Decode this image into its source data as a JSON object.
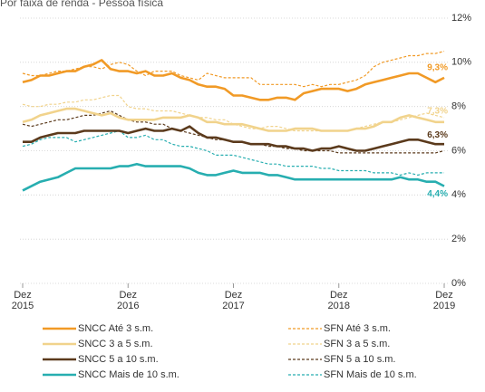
{
  "chart_data": {
    "type": "line",
    "title": "Por faixa de renda - Pessoa física",
    "categories": [
      "Dez 2015",
      null,
      null,
      null,
      null,
      null,
      null,
      null,
      null,
      null,
      null,
      null,
      "Dez 2016",
      null,
      null,
      null,
      null,
      null,
      null,
      null,
      null,
      null,
      null,
      null,
      "Dez 2017",
      null,
      null,
      null,
      null,
      null,
      null,
      null,
      null,
      null,
      null,
      null,
      "Dez 2018",
      null,
      null,
      null,
      null,
      null,
      null,
      null,
      null,
      null,
      null,
      null,
      "Dez 2019"
    ],
    "ylim": [
      0,
      12
    ],
    "yticks": [
      {
        "value": 0,
        "label": "0%"
      },
      {
        "value": 2,
        "label": "2%"
      },
      {
        "value": 4,
        "label": "4%"
      },
      {
        "value": 6,
        "label": "6%"
      },
      {
        "value": 8,
        "label": "8%"
      },
      {
        "value": 10,
        "label": "10%"
      },
      {
        "value": 12,
        "label": "12%"
      }
    ],
    "grid": true,
    "series": [
      {
        "name": "SNCC Até 3 s.m.",
        "color": "#f19a26",
        "dashed": false,
        "values": [
          9.1,
          9.2,
          9.4,
          9.4,
          9.5,
          9.6,
          9.6,
          9.8,
          9.9,
          10.1,
          9.7,
          9.6,
          9.6,
          9.5,
          9.6,
          9.4,
          9.4,
          9.5,
          9.3,
          9.2,
          9.0,
          8.9,
          8.9,
          8.8,
          8.5,
          8.5,
          8.4,
          8.3,
          8.3,
          8.4,
          8.4,
          8.3,
          8.6,
          8.7,
          8.8,
          8.8,
          8.8,
          8.7,
          8.8,
          9.0,
          9.1,
          9.2,
          9.3,
          9.4,
          9.5,
          9.5,
          9.3,
          9.1,
          9.3
        ]
      },
      {
        "name": "SFN Até 3 s.m.",
        "color": "#f19a26",
        "dashed": true,
        "values": [
          9.5,
          9.4,
          9.4,
          9.5,
          9.6,
          9.6,
          9.7,
          9.8,
          9.8,
          9.7,
          9.9,
          10.0,
          9.9,
          9.6,
          9.4,
          9.6,
          9.6,
          9.6,
          9.4,
          9.3,
          9.2,
          9.5,
          9.4,
          9.3,
          9.3,
          9.3,
          9.3,
          9.0,
          9.0,
          9.0,
          9.0,
          9.0,
          8.9,
          9.0,
          8.9,
          9.0,
          9.0,
          9.1,
          9.2,
          9.4,
          9.8,
          10.0,
          10.1,
          10.2,
          10.3,
          10.3,
          10.4,
          10.4,
          10.5
        ]
      },
      {
        "name": "SNCC 3 a 5 s.m.",
        "color": "#f1d38c",
        "dashed": false,
        "values": [
          7.3,
          7.4,
          7.6,
          7.7,
          7.8,
          7.9,
          7.9,
          7.8,
          7.7,
          7.6,
          7.7,
          7.5,
          7.4,
          7.4,
          7.4,
          7.4,
          7.5,
          7.5,
          7.5,
          7.6,
          7.5,
          7.3,
          7.3,
          7.2,
          7.2,
          7.2,
          7.1,
          7.0,
          6.9,
          6.9,
          6.9,
          7.0,
          7.0,
          7.0,
          6.9,
          6.9,
          6.9,
          6.9,
          7.0,
          7.0,
          7.1,
          7.3,
          7.3,
          7.5,
          7.6,
          7.5,
          7.4,
          7.3,
          7.3
        ]
      },
      {
        "name": "SFN 3 a 5 s.m.",
        "color": "#f1d38c",
        "dashed": true,
        "values": [
          8.1,
          8.0,
          8.0,
          8.1,
          8.1,
          8.2,
          8.2,
          8.3,
          8.3,
          8.4,
          8.5,
          8.5,
          8.0,
          7.9,
          7.9,
          7.8,
          7.8,
          7.8,
          7.7,
          7.6,
          7.5,
          7.5,
          7.4,
          7.4,
          7.2,
          7.1,
          7.0,
          7.0,
          7.1,
          7.1,
          7.0,
          6.9,
          6.9,
          6.9,
          6.9,
          6.9,
          6.9,
          6.9,
          7.0,
          7.1,
          7.2,
          7.3,
          7.3,
          7.4,
          7.5,
          7.6,
          7.7,
          7.6,
          7.5
        ]
      },
      {
        "name": "SNCC 5 a 10 s.m.",
        "color": "#5b3a1c",
        "dashed": false,
        "values": [
          6.4,
          6.4,
          6.6,
          6.7,
          6.8,
          6.8,
          6.8,
          6.9,
          6.9,
          6.9,
          6.9,
          6.9,
          6.8,
          6.9,
          7.0,
          6.9,
          6.9,
          7.0,
          6.9,
          7.1,
          6.8,
          6.6,
          6.6,
          6.5,
          6.4,
          6.4,
          6.3,
          6.3,
          6.3,
          6.2,
          6.2,
          6.1,
          6.1,
          6.0,
          6.1,
          6.1,
          6.2,
          6.1,
          6.0,
          6.0,
          6.1,
          6.2,
          6.3,
          6.4,
          6.5,
          6.5,
          6.4,
          6.3,
          6.3
        ]
      },
      {
        "name": "SFN 5 a 10 s.m.",
        "color": "#5b3a1c",
        "dashed": true,
        "values": [
          7.2,
          7.1,
          7.2,
          7.3,
          7.4,
          7.4,
          7.5,
          7.6,
          7.6,
          7.7,
          7.8,
          7.6,
          7.4,
          7.3,
          7.3,
          7.2,
          7.2,
          7.0,
          6.9,
          6.8,
          6.7,
          6.6,
          6.5,
          6.5,
          6.4,
          6.4,
          6.3,
          6.3,
          6.2,
          6.2,
          6.1,
          6.1,
          6.0,
          6.0,
          6.0,
          6.0,
          5.9,
          5.9,
          5.9,
          5.9,
          5.9,
          5.9,
          5.9,
          5.9,
          5.9,
          5.9,
          5.9,
          5.9,
          6.0
        ]
      },
      {
        "name": "SNCC Mais de 10 s.m.",
        "color": "#27aeb0",
        "dashed": false,
        "values": [
          4.2,
          4.4,
          4.6,
          4.7,
          4.8,
          5.0,
          5.2,
          5.2,
          5.2,
          5.2,
          5.2,
          5.3,
          5.3,
          5.4,
          5.3,
          5.3,
          5.3,
          5.3,
          5.3,
          5.2,
          5.0,
          4.9,
          4.9,
          5.0,
          5.1,
          5.0,
          5.0,
          5.0,
          4.9,
          4.9,
          4.8,
          4.7,
          4.7,
          4.7,
          4.7,
          4.7,
          4.7,
          4.7,
          4.7,
          4.7,
          4.7,
          4.7,
          4.7,
          4.8,
          4.7,
          4.7,
          4.6,
          4.6,
          4.4
        ]
      },
      {
        "name": "SFN Mais de 10 s.m.",
        "color": "#27aeb0",
        "dashed": true,
        "values": [
          6.2,
          6.3,
          6.5,
          6.6,
          6.6,
          6.6,
          6.4,
          6.5,
          6.6,
          6.7,
          6.8,
          6.9,
          6.6,
          6.6,
          6.7,
          6.5,
          6.5,
          6.3,
          6.2,
          6.2,
          6.1,
          6.0,
          5.8,
          5.8,
          5.8,
          5.7,
          5.6,
          5.5,
          5.4,
          5.4,
          5.3,
          5.3,
          5.3,
          5.3,
          5.2,
          5.2,
          5.1,
          5.1,
          5.1,
          5.1,
          5.0,
          5.0,
          5.0,
          4.9,
          5.0,
          4.9,
          5.0,
          5.0,
          5.0
        ]
      }
    ],
    "annotations": [
      {
        "text": "9,3%",
        "value": 9.3,
        "color": "#f19a26"
      },
      {
        "text": "7,3%",
        "value": 7.3,
        "color": "#f1d38c"
      },
      {
        "text": "6,3%",
        "value": 6.3,
        "color": "#5b3a1c"
      },
      {
        "text": "4,4%",
        "value": 4.4,
        "color": "#27aeb0"
      }
    ]
  }
}
